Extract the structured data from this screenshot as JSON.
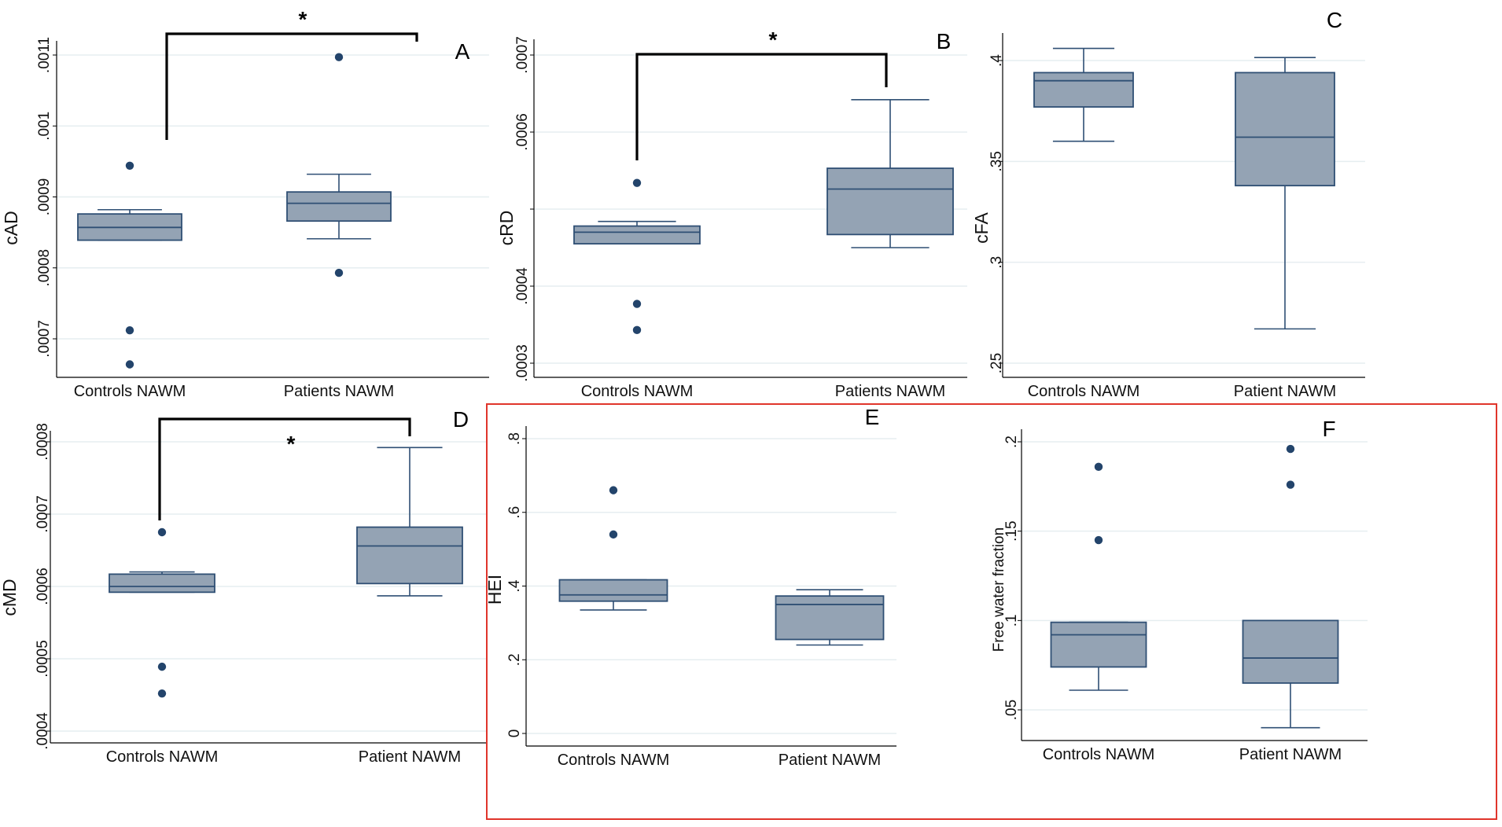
{
  "figure": {
    "highlight_color": "#e0352b",
    "box_fill": "#94a3b4",
    "box_stroke": "#2f4f74",
    "outlier_color": "#23446b",
    "grid_color": "#e6eef0",
    "bracket_color": "#000000"
  },
  "chart_data": [
    {
      "type": "box",
      "panel_label": "A",
      "ylabel": "cAD",
      "ylim": [
        0.00066,
        0.00112
      ],
      "yticks": [
        0.0007,
        0.0008,
        0.0009,
        0.001,
        0.0011
      ],
      "ytick_labels": [
        ".0007",
        ".0008",
        ".0009",
        ".001",
        ".0011"
      ],
      "grid": true,
      "categories": [
        "Controls NAWM",
        "Patients NAWM"
      ],
      "groups": [
        {
          "name": "Controls NAWM",
          "whisker_low": 0.000839,
          "q1": 0.000839,
          "median": 0.000857,
          "q3": 0.000876,
          "whisker_high": 0.000882,
          "outliers": [
            0.000944,
            0.000712,
            0.000664
          ]
        },
        {
          "name": "Patients NAWM",
          "whisker_low": 0.000841,
          "q1": 0.000866,
          "median": 0.000891,
          "q3": 0.000907,
          "whisker_high": 0.000932,
          "outliers": [
            0.001097,
            0.000793
          ]
        }
      ],
      "significance": {
        "label": "*",
        "between": [
          0,
          1
        ],
        "position": "above"
      }
    },
    {
      "type": "box",
      "panel_label": "B",
      "ylabel": "cRD",
      "ylim": [
        0.00029,
        0.000718
      ],
      "yticks": [
        0.0003,
        0.0004,
        0.0005,
        0.0006,
        0.0007
      ],
      "ytick_labels": [
        ".0003",
        ".0004",
        "",
        ".0006",
        ".0007"
      ],
      "grid": true,
      "categories": [
        "Controls NAWM",
        "Patients NAWM"
      ],
      "groups": [
        {
          "name": "Controls NAWM",
          "whisker_low": 0.000455,
          "q1": 0.000455,
          "median": 0.00047,
          "q3": 0.000478,
          "whisker_high": 0.000484,
          "outliers": [
            0.000534,
            0.000377,
            0.000343
          ]
        },
        {
          "name": "Patients NAWM",
          "whisker_low": 0.00045,
          "q1": 0.000467,
          "median": 0.000526,
          "q3": 0.000553,
          "whisker_high": 0.000642,
          "outliers": []
        }
      ],
      "significance": {
        "label": "*",
        "between": [
          0,
          1
        ],
        "position": "above"
      }
    },
    {
      "type": "box",
      "panel_label": "C",
      "ylabel": "cFA",
      "ylim": [
        0.243,
        0.412
      ],
      "yticks": [
        0.25,
        0.3,
        0.35,
        0.4
      ],
      "ytick_labels": [
        ".25",
        ".3",
        ".35",
        ".4"
      ],
      "grid": true,
      "categories": [
        "Controls NAWM",
        "Patient NAWM"
      ],
      "groups": [
        {
          "name": "Controls NAWM",
          "whisker_low": 0.36,
          "q1": 0.377,
          "median": 0.39,
          "q3": 0.394,
          "whisker_high": 0.406,
          "outliers": []
        },
        {
          "name": "Patient NAWM",
          "whisker_low": 0.267,
          "q1": 0.338,
          "median": 0.362,
          "q3": 0.394,
          "whisker_high": 0.4015,
          "outliers": []
        }
      ],
      "significance": null
    },
    {
      "type": "box",
      "panel_label": "D",
      "ylabel": "cMD",
      "ylim": [
        0.000383,
        0.000817
      ],
      "yticks": [
        0.0004,
        0.0005,
        0.0006,
        0.0007,
        0.0008
      ],
      "ytick_labels": [
        ".0004",
        ".0005",
        ".0006",
        ".0007",
        ".0008"
      ],
      "grid": true,
      "categories": [
        "Controls NAWM",
        "Patient NAWM"
      ],
      "groups": [
        {
          "name": "Controls NAWM",
          "whisker_low": 0.000592,
          "q1": 0.000592,
          "median": 0.0006,
          "q3": 0.000617,
          "whisker_high": 0.00062,
          "outliers": [
            0.000675,
            0.000489,
            0.000452
          ]
        },
        {
          "name": "Patient NAWM",
          "whisker_low": 0.000587,
          "q1": 0.000604,
          "median": 0.000656,
          "q3": 0.000682,
          "whisker_high": 0.000792,
          "outliers": []
        }
      ],
      "significance": {
        "label": "*",
        "between": [
          0,
          1
        ],
        "position": "below-bracket"
      }
    },
    {
      "type": "box",
      "panel_label": "E",
      "ylabel": "HEI",
      "ylim": [
        -0.034,
        0.834
      ],
      "yticks": [
        0,
        0.2,
        0.4,
        0.6,
        0.8
      ],
      "ytick_labels": [
        "0",
        ".2",
        ".4",
        ".6",
        ".8"
      ],
      "grid": true,
      "categories": [
        "Controls NAWM",
        "Patient NAWM"
      ],
      "groups": [
        {
          "name": "Controls NAWM",
          "whisker_low": 0.335,
          "q1": 0.359,
          "median": 0.376,
          "q3": 0.417,
          "whisker_high": 0.417,
          "outliers": [
            0.66,
            0.54
          ]
        },
        {
          "name": "Patient NAWM",
          "whisker_low": 0.24,
          "q1": 0.255,
          "median": 0.35,
          "q3": 0.373,
          "whisker_high": 0.39,
          "outliers": []
        }
      ],
      "significance": null
    },
    {
      "type": "box",
      "panel_label": "F",
      "ylabel": "Free water fraction",
      "ylim": [
        0.0328,
        0.207
      ],
      "yticks": [
        0.05,
        0.1,
        0.15,
        0.2
      ],
      "ytick_labels": [
        ".05",
        ".1",
        ".15",
        ".2"
      ],
      "grid": true,
      "categories": [
        "Controls NAWM",
        "Patient NAWM"
      ],
      "groups": [
        {
          "name": "Controls NAWM",
          "whisker_low": 0.061,
          "q1": 0.074,
          "median": 0.092,
          "q3": 0.099,
          "whisker_high": 0.099,
          "outliers": [
            0.186,
            0.145
          ]
        },
        {
          "name": "Patient NAWM",
          "whisker_low": 0.04,
          "q1": 0.065,
          "median": 0.079,
          "q3": 0.1,
          "whisker_high": 0.1,
          "outliers": [
            0.196,
            0.176
          ]
        }
      ],
      "significance": null
    }
  ]
}
